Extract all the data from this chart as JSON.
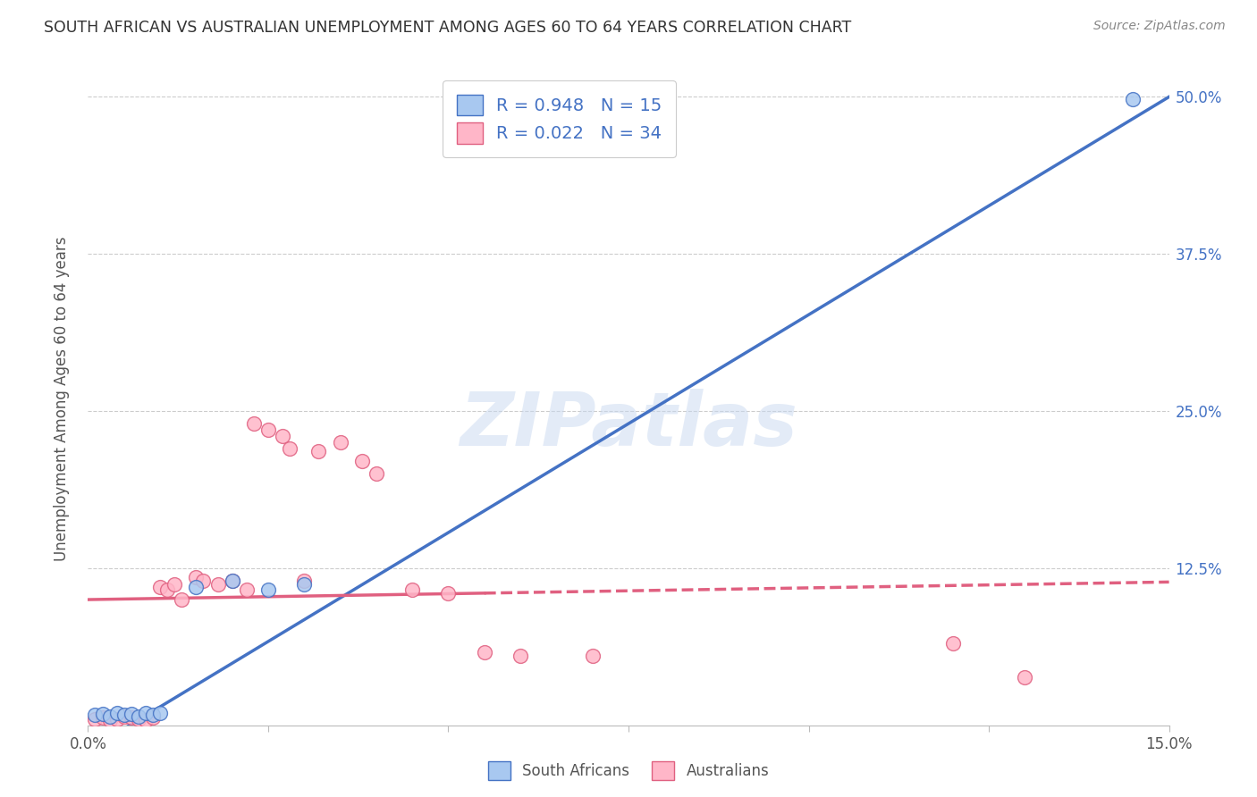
{
  "title": "SOUTH AFRICAN VS AUSTRALIAN UNEMPLOYMENT AMONG AGES 60 TO 64 YEARS CORRELATION CHART",
  "source": "Source: ZipAtlas.com",
  "ylabel": "Unemployment Among Ages 60 to 64 years",
  "xlim": [
    0.0,
    0.15
  ],
  "ylim": [
    0.0,
    0.52
  ],
  "xtick_positions": [
    0.0,
    0.025,
    0.05,
    0.075,
    0.1,
    0.125,
    0.15
  ],
  "xtick_labels": [
    "0.0%",
    "",
    "",
    "",
    "",
    "",
    "15.0%"
  ],
  "ytick_positions": [
    0.125,
    0.25,
    0.375,
    0.5
  ],
  "ytick_labels": [
    "12.5%",
    "25.0%",
    "37.5%",
    "50.0%"
  ],
  "sa_x": [
    0.001,
    0.002,
    0.003,
    0.004,
    0.005,
    0.006,
    0.007,
    0.008,
    0.009,
    0.01,
    0.015,
    0.02,
    0.025,
    0.03,
    0.145
  ],
  "sa_y": [
    0.008,
    0.009,
    0.007,
    0.01,
    0.008,
    0.009,
    0.007,
    0.01,
    0.008,
    0.01,
    0.11,
    0.115,
    0.108,
    0.112,
    0.498
  ],
  "au_x": [
    0.001,
    0.002,
    0.003,
    0.004,
    0.005,
    0.006,
    0.007,
    0.008,
    0.009,
    0.01,
    0.011,
    0.012,
    0.013,
    0.015,
    0.016,
    0.018,
    0.02,
    0.022,
    0.023,
    0.025,
    0.027,
    0.028,
    0.03,
    0.032,
    0.035,
    0.038,
    0.04,
    0.045,
    0.05,
    0.055,
    0.06,
    0.07,
    0.12,
    0.13
  ],
  "au_y": [
    0.005,
    0.006,
    0.004,
    0.005,
    0.007,
    0.006,
    0.005,
    0.004,
    0.006,
    0.11,
    0.108,
    0.112,
    0.1,
    0.118,
    0.115,
    0.112,
    0.115,
    0.108,
    0.24,
    0.235,
    0.23,
    0.22,
    0.115,
    0.218,
    0.225,
    0.21,
    0.2,
    0.108,
    0.105,
    0.058,
    0.055,
    0.055,
    0.065,
    0.038
  ],
  "sa_color": "#a8c8f0",
  "sa_edge_color": "#4472C4",
  "au_color": "#ffb6c8",
  "au_edge_color": "#e06080",
  "sa_line_color": "#4472C4",
  "au_line_color": "#e06080",
  "sa_R": 0.948,
  "sa_N": 15,
  "au_R": 0.022,
  "au_N": 34,
  "watermark": "ZIPatlas",
  "background_color": "#ffffff",
  "grid_color": "#cccccc",
  "title_color": "#333333",
  "source_color": "#888888",
  "label_color": "#555555",
  "tick_color": "#4472C4"
}
